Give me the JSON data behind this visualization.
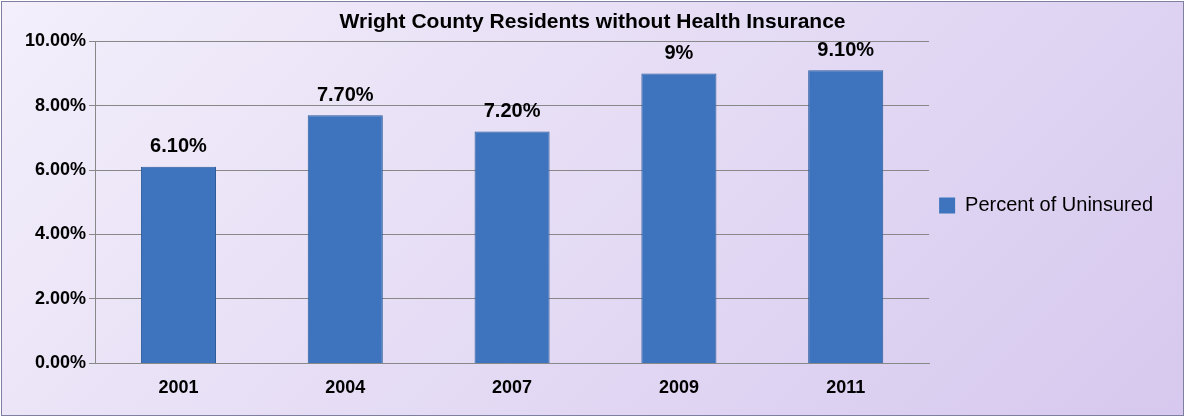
{
  "chart_data": {
    "type": "bar",
    "title": "Wright County Residents without Health Insurance",
    "categories": [
      "2001",
      "2004",
      "2007",
      "2009",
      "2011"
    ],
    "series": [
      {
        "name": "Percent of Uninsured",
        "color": "#3d74bd",
        "values": [
          6.1,
          7.7,
          7.2,
          9,
          9.1
        ],
        "value_labels": [
          "6.10%",
          "7.70%",
          "7.20%",
          "9%",
          "9.10%"
        ]
      }
    ],
    "ylim": [
      0,
      10
    ],
    "yticks": [
      {
        "value": 0,
        "label": "0.00%"
      },
      {
        "value": 2,
        "label": "2.00%"
      },
      {
        "value": 4,
        "label": "4.00%"
      },
      {
        "value": 6,
        "label": "6.00%"
      },
      {
        "value": 8,
        "label": "8.00%"
      },
      {
        "value": 10,
        "label": "10.00%"
      }
    ],
    "grid": "y",
    "legend": "right"
  }
}
